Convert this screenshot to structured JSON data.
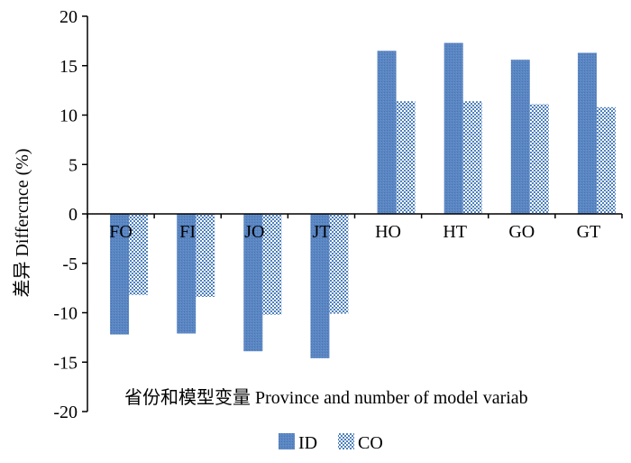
{
  "chart_data": {
    "type": "bar",
    "categories": [
      "FO",
      "FI",
      "JO",
      "JT",
      "HO",
      "HT",
      "GO",
      "GT"
    ],
    "series": [
      {
        "name": "ID",
        "values": [
          -12.2,
          -12.1,
          -13.9,
          -14.6,
          16.5,
          17.3,
          15.6,
          16.3
        ],
        "color": "#4f81bd"
      },
      {
        "name": "CO",
        "values": [
          -8.2,
          -8.4,
          -10.2,
          -10.1,
          11.4,
          11.4,
          11.1,
          10.8
        ],
        "color": "#4f81bd",
        "pattern": "checker"
      }
    ],
    "ylabel": "差异 Differcnce (%)",
    "xlabel": "省份和模型变量 Province and number of model variab",
    "ylim": [
      -20,
      20
    ],
    "yticks": [
      -20,
      -15,
      -10,
      -5,
      0,
      5,
      10,
      15,
      20
    ],
    "grid": false,
    "legend_position": "bottom-center"
  }
}
